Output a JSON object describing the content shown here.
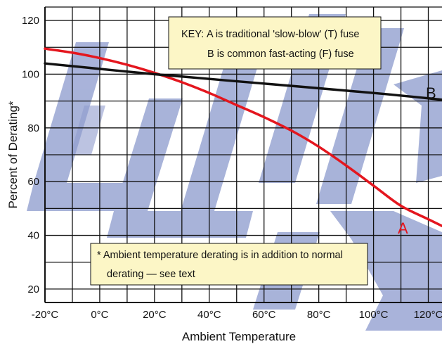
{
  "chart_data": {
    "type": "line",
    "title": "",
    "xlabel": "Ambient Temperature",
    "ylabel": "Percent of Derating*",
    "x_ticks": [
      "-20°C",
      "0°C",
      "20°C",
      "40°C",
      "60°C",
      "80°C",
      "100°C",
      "120°C"
    ],
    "x_tick_values": [
      -20,
      0,
      20,
      40,
      60,
      80,
      100,
      120
    ],
    "y_ticks": [
      "20",
      "40",
      "60",
      "80",
      "100",
      "120"
    ],
    "y_tick_values": [
      20,
      40,
      60,
      80,
      100,
      120
    ],
    "xlim": [
      -20,
      125
    ],
    "ylim": [
      15,
      125
    ],
    "grid": true,
    "series": [
      {
        "name": "A",
        "color": "#e4161e",
        "x": [
          -20,
          -10,
          0,
          10,
          20,
          30,
          40,
          50,
          60,
          70,
          80,
          90,
          100,
          110,
          120,
          125
        ],
        "y": [
          109.5,
          108,
          106,
          103.5,
          100.5,
          97,
          93,
          88.5,
          84,
          79,
          73,
          66,
          58.5,
          51,
          46,
          43.5
        ]
      },
      {
        "name": "B",
        "color": "#111111",
        "x": [
          -20,
          20,
          60,
          100,
          125
        ],
        "y": [
          104,
          100,
          96.5,
          93,
          90.5
        ]
      }
    ],
    "key": {
      "label": "KEY",
      "line1": "A is traditional 'slow-blow' (T) fuse",
      "line2": "B is common fast-acting (F) fuse"
    },
    "note": {
      "line1": "* Ambient temperature derating is in addition to normal",
      "line2": "derating — see text"
    },
    "box_fill": "#fcf6c6",
    "watermark_color": "#8c9acd"
  }
}
